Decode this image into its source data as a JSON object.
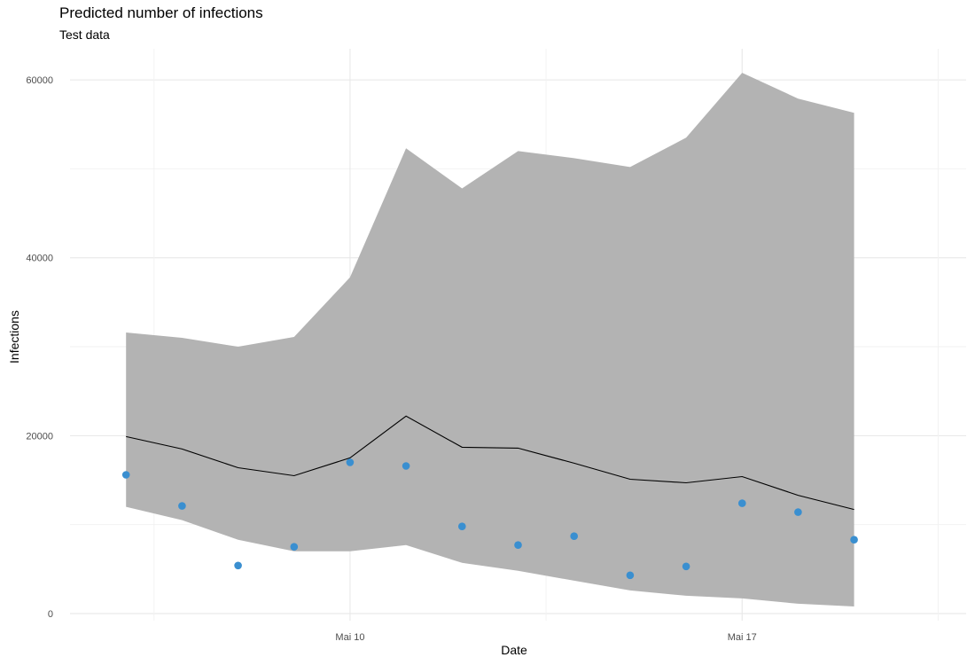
{
  "chart_data": {
    "type": "line",
    "title": "Predicted number of infections",
    "subtitle": "Test data",
    "xlabel": "Date",
    "ylabel": "Infections",
    "x": [
      "2020-05-06",
      "2020-05-07",
      "2020-05-08",
      "2020-05-09",
      "2020-05-10",
      "2020-05-11",
      "2020-05-12",
      "2020-05-13",
      "2020-05-14",
      "2020-05-15",
      "2020-05-16",
      "2020-05-17",
      "2020-05-18",
      "2020-05-19",
      "2020-05-20"
    ],
    "x_ticks": [
      {
        "date": "2020-05-10",
        "label": "Mai 10"
      },
      {
        "date": "2020-05-17",
        "label": "Mai 17"
      }
    ],
    "xlim": [
      "2020-05-05",
      "2020-05-21"
    ],
    "y_ticks": [
      0,
      20000,
      40000,
      60000
    ],
    "ylim": [
      -800,
      63500
    ],
    "grid": true,
    "series": [
      {
        "kind": "ribbon",
        "color": "#b3b3b3",
        "lower": [
          12000,
          10500,
          8300,
          7000,
          7000,
          7700,
          5700,
          4800,
          3700,
          2600,
          2000,
          1700,
          1100,
          800,
          null
        ],
        "upper": [
          31600,
          31000,
          30000,
          31100,
          37800,
          52300,
          47800,
          52000,
          51200,
          50200,
          53500,
          60800,
          57900,
          56300,
          null
        ]
      },
      {
        "kind": "line",
        "color": "#000000",
        "values": [
          19900,
          18500,
          16400,
          15500,
          17500,
          22200,
          18700,
          18600,
          16900,
          15100,
          14700,
          15400,
          13300,
          11700,
          null
        ]
      },
      {
        "kind": "points",
        "color": "#3a8fd0",
        "values": [
          15600,
          12100,
          5400,
          7500,
          17000,
          16600,
          9800,
          7700,
          8700,
          4300,
          5300,
          12400,
          11400,
          8300,
          null
        ]
      }
    ]
  }
}
